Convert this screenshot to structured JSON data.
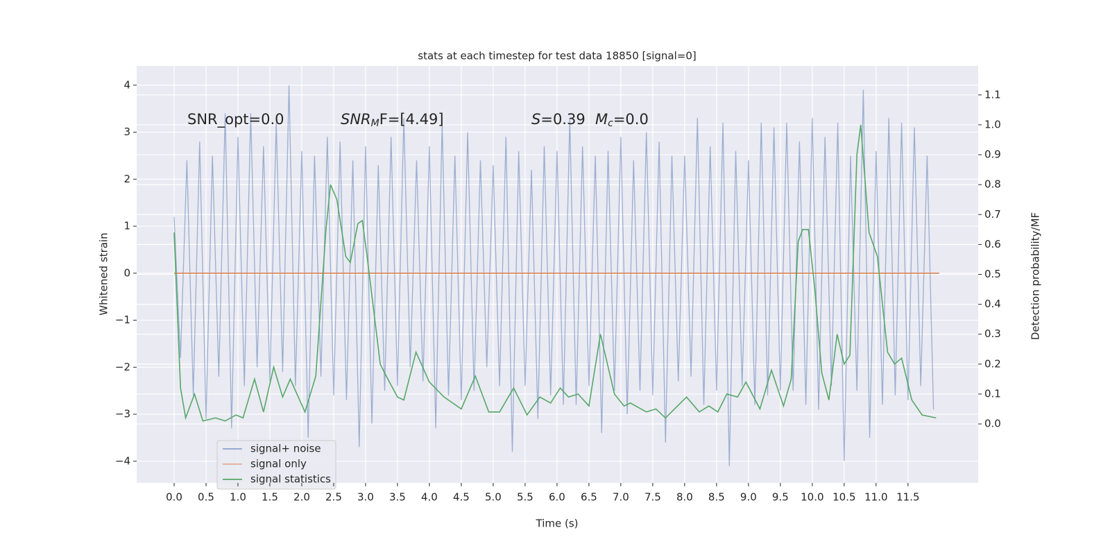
{
  "chart_data": {
    "type": "line",
    "title": "stats at each timestep for test data 18850 [signal=0]",
    "x_label": "Time (s)",
    "y_label": "Whitened strain",
    "y2_label": "Detection probability/MF",
    "annotations": [
      {
        "text": "SNR_opt=0.0"
      },
      {
        "italic": "SNR",
        "sub": "M",
        "text": "F=[4.49]"
      },
      {
        "italic": "S",
        "text": "=0.39"
      },
      {
        "italic": "M",
        "sub": "c",
        "text": "=0.0"
      }
    ],
    "xlim": [
      -0.587,
      12.6
    ],
    "ylim": [
      -4.46,
      4.41
    ],
    "y2lim": [
      -0.197,
      1.197
    ],
    "xticks": [
      {
        "value": 0,
        "label": "0.0"
      },
      0.5,
      {
        "value": 1,
        "label": "1.0"
      },
      1.5,
      {
        "value": 2,
        "label": "2.0"
      },
      2.5,
      {
        "value": 3,
        "label": "3.0"
      },
      3.5,
      {
        "value": 4,
        "label": "4.0"
      },
      4.5,
      {
        "value": 5,
        "label": "5.0"
      },
      5.5,
      {
        "value": 6,
        "label": "6.0"
      },
      6.5,
      {
        "value": 7,
        "label": "7.0"
      },
      7.5,
      {
        "value": 8,
        "label": "8.0"
      },
      8.5,
      {
        "value": 9,
        "label": "9.0"
      },
      9.5,
      {
        "value": 10,
        "label": "10.0"
      },
      10.5,
      {
        "value": 11,
        "label": "11.0"
      },
      11.5
    ],
    "yticks": [
      {
        "value": -4,
        "label": "−4"
      },
      {
        "value": -3,
        "label": "−3"
      },
      {
        "value": -2,
        "label": "−2"
      },
      {
        "value": -1,
        "label": "−1"
      },
      0,
      1,
      2,
      3,
      4
    ],
    "y2ticks": [
      {
        "value": 0,
        "label": "0.0"
      },
      0.1,
      0.2,
      0.3,
      0.4,
      0.5,
      0.6,
      0.7,
      0.8,
      0.9,
      {
        "value": 1,
        "label": "1.0"
      },
      1.1
    ],
    "grid": true,
    "legend": "lower left",
    "series": [
      {
        "name": "signal+ noise",
        "color": "#4c72b0",
        "axis": "y",
        "x": [
          0.0,
          0.1,
          0.2,
          0.3,
          0.4,
          0.5,
          0.6,
          0.7,
          0.8,
          0.9,
          1.0,
          1.1,
          1.2,
          1.3,
          1.4,
          1.5,
          1.6,
          1.7,
          1.8,
          1.9,
          2.0,
          2.1,
          2.2,
          2.3,
          2.4,
          2.5,
          2.6,
          2.7,
          2.8,
          2.9,
          3.0,
          3.1,
          3.2,
          3.3,
          3.4,
          3.5,
          3.6,
          3.7,
          3.8,
          3.9,
          4.0,
          4.1,
          4.2,
          4.3,
          4.4,
          4.5,
          4.6,
          4.7,
          4.8,
          4.9,
          5.0,
          5.1,
          5.2,
          5.3,
          5.4,
          5.5,
          5.6,
          5.7,
          5.8,
          5.9,
          6.0,
          6.1,
          6.2,
          6.3,
          6.4,
          6.5,
          6.6,
          6.7,
          6.8,
          6.9,
          7.0,
          7.1,
          7.2,
          7.3,
          7.4,
          7.5,
          7.6,
          7.7,
          7.8,
          7.9,
          8.0,
          8.1,
          8.2,
          8.3,
          8.4,
          8.5,
          8.6,
          8.7,
          8.8,
          8.9,
          9.0,
          9.1,
          9.2,
          9.3,
          9.4,
          9.5,
          9.6,
          9.7,
          9.8,
          9.9,
          10.0,
          10.1,
          10.2,
          10.3,
          10.4,
          10.5,
          10.6,
          10.7,
          10.8,
          10.9,
          11.0,
          11.1,
          11.2,
          11.3,
          11.4,
          11.5,
          11.6,
          11.7,
          11.8,
          11.9
        ],
        "values": [
          1.2,
          -1.8,
          2.4,
          -2.6,
          2.8,
          -3.1,
          2.5,
          -2.2,
          3.4,
          -3.3,
          2.9,
          -2.4,
          3.4,
          -2.0,
          2.7,
          -2.3,
          3.2,
          -2.1,
          4.0,
          -2.4,
          2.6,
          -3.5,
          2.5,
          -2.2,
          2.9,
          -2.6,
          2.8,
          -2.7,
          2.4,
          -3.7,
          2.7,
          -3.2,
          2.3,
          -2.5,
          2.9,
          -2.4,
          3.3,
          -2.0,
          2.4,
          -2.3,
          2.7,
          -3.3,
          3.2,
          -2.6,
          2.5,
          -2.7,
          3.0,
          -2.5,
          2.4,
          -2.0,
          2.3,
          -2.4,
          2.9,
          -3.8,
          2.6,
          -2.4,
          2.2,
          -3.1,
          2.7,
          -2.6,
          2.6,
          -2.8,
          3.3,
          -2.8,
          2.7,
          -2.4,
          2.5,
          -3.4,
          2.6,
          -2.5,
          2.9,
          -3.0,
          2.4,
          -2.5,
          3.0,
          -2.6,
          2.8,
          -3.6,
          2.5,
          -2.3,
          2.5,
          -2.2,
          3.3,
          -2.8,
          2.7,
          -2.5,
          3.2,
          -4.1,
          2.6,
          -2.4,
          2.4,
          -2.8,
          3.2,
          -2.6,
          3.1,
          -2.5,
          3.2,
          -2.5,
          2.8,
          -2.8,
          3.3,
          -2.9,
          2.9,
          -2.4,
          3.2,
          -4.0,
          2.5,
          -2.5,
          3.9,
          -3.5,
          2.6,
          -2.8,
          3.3,
          -2.6,
          3.2,
          -2.7,
          3.1,
          -2.4,
          2.5,
          -2.9
        ]
      },
      {
        "name": "signal only",
        "color": "#dd8452",
        "axis": "y",
        "x": [
          0.0,
          11.99
        ],
        "values": [
          0,
          0
        ]
      },
      {
        "name": "signal statistics",
        "color": "#55a868",
        "axis": "y2",
        "x": [
          0,
          0.1,
          0.18,
          0.32,
          0.45,
          0.65,
          0.8,
          0.97,
          1.08,
          1.26,
          1.4,
          1.56,
          1.7,
          1.82,
          2.05,
          2.22,
          2.38,
          2.45,
          2.55,
          2.69,
          2.76,
          2.88,
          2.95,
          3.03,
          3.23,
          3.3,
          3.5,
          3.6,
          3.79,
          4.0,
          4.23,
          4.5,
          4.72,
          4.93,
          5.1,
          5.32,
          5.53,
          5.73,
          5.9,
          6.05,
          6.18,
          6.33,
          6.5,
          6.68,
          6.9,
          7.05,
          7.15,
          7.4,
          7.55,
          7.7,
          8.03,
          8.23,
          8.38,
          8.52,
          8.66,
          8.83,
          8.96,
          9.18,
          9.36,
          9.55,
          9.67,
          9.78,
          9.85,
          9.94,
          10.04,
          10.15,
          10.26,
          10.39,
          10.5,
          10.59,
          10.7,
          10.76,
          10.89,
          11.02,
          11.18,
          11.29,
          11.4,
          11.56,
          11.72,
          11.94
        ],
        "values": [
          0.64,
          0.12,
          0.02,
          0.1,
          0.01,
          0.02,
          0.01,
          0.03,
          0.02,
          0.15,
          0.04,
          0.19,
          0.09,
          0.15,
          0.04,
          0.16,
          0.65,
          0.8,
          0.75,
          0.56,
          0.54,
          0.67,
          0.68,
          0.55,
          0.2,
          0.17,
          0.09,
          0.08,
          0.24,
          0.14,
          0.09,
          0.05,
          0.16,
          0.04,
          0.04,
          0.12,
          0.03,
          0.09,
          0.07,
          0.12,
          0.09,
          0.1,
          0.06,
          0.3,
          0.1,
          0.06,
          0.07,
          0.04,
          0.05,
          0.02,
          0.09,
          0.04,
          0.06,
          0.04,
          0.1,
          0.09,
          0.14,
          0.05,
          0.18,
          0.06,
          0.15,
          0.61,
          0.65,
          0.65,
          0.45,
          0.17,
          0.08,
          0.3,
          0.2,
          0.23,
          0.9,
          1.0,
          0.64,
          0.56,
          0.24,
          0.2,
          0.22,
          0.08,
          0.03,
          0.02
        ]
      }
    ]
  }
}
